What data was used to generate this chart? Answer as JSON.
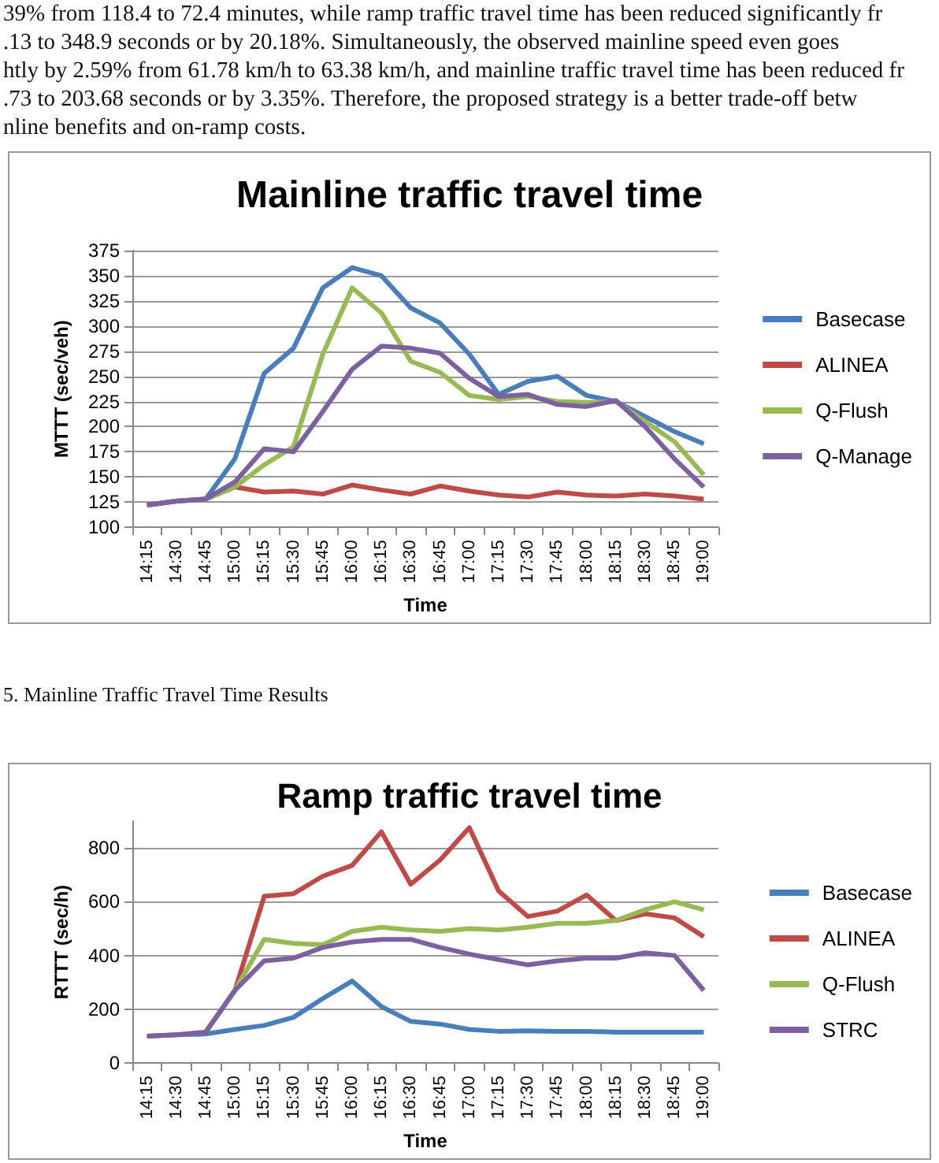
{
  "chart_data": [
    {
      "type": "line",
      "title": "Mainline traffic travel time",
      "xlabel": "Time",
      "ylabel": "MTTT (sec/veh)",
      "categories": [
        "14:15",
        "14:30",
        "14:45",
        "15:00",
        "15:15",
        "15:30",
        "15:45",
        "16:00",
        "16:15",
        "16:30",
        "16:45",
        "17:00",
        "17:15",
        "17:30",
        "17:45",
        "18:00",
        "18:15",
        "18:30",
        "18:45",
        "19:00"
      ],
      "series": [
        {
          "name": "Basecase",
          "color": "#4a7ebb",
          "values": [
            122,
            126,
            128,
            168,
            253,
            278,
            338,
            358,
            350,
            318,
            303,
            272,
            232,
            245,
            250,
            231,
            225,
            210,
            195,
            183
          ]
        },
        {
          "name": "ALINEA",
          "color": "#be4b48",
          "values": [
            122,
            126,
            128,
            140,
            135,
            136,
            133,
            142,
            137,
            133,
            141,
            136,
            132,
            130,
            135,
            132,
            131,
            133,
            131,
            128
          ]
        },
        {
          "name": "Q-Flush",
          "color": "#98b954",
          "values": [
            122,
            126,
            128,
            140,
            162,
            180,
            272,
            338,
            313,
            265,
            254,
            231,
            227,
            230,
            225,
            224,
            225,
            205,
            185,
            152
          ]
        },
        {
          "name": "Q-Manage",
          "color": "#7d60a0",
          "values": [
            122,
            126,
            128,
            145,
            178,
            175,
            215,
            257,
            280,
            278,
            273,
            248,
            230,
            232,
            222,
            220,
            226,
            200,
            168,
            140
          ]
        }
      ],
      "ylim": [
        100,
        375
      ],
      "yticks": [
        100,
        125,
        150,
        175,
        200,
        225,
        250,
        275,
        300,
        325,
        350,
        375
      ],
      "grid": "y",
      "legend": "right",
      "marker": "none",
      "annotations": [
        "39% from 118.4 to 72.4 minutes, while ramp traffic travel time has been reduced significantly fr",
        ".13 to 348.9 seconds or by 20.18%. Simultaneously, the observed mainline speed even goes",
        "htly by 2.59% from 61.78 km/h to 63.38 km/h, and mainline traffic travel time has been reduced fr",
        ".73 to 203.68 seconds or by 3.35%. Therefore, the proposed strategy is a better trade-off betw",
        "nline benefits and on-ramp costs.",
        "5. Mainline Traffic Travel Time Results"
      ]
    },
    {
      "type": "line",
      "title": "Ramp traffic travel time",
      "xlabel": "Time",
      "ylabel": "RTTT (sec/h)",
      "categories": [
        "14:15",
        "14:30",
        "14:45",
        "15:00",
        "15:15",
        "15:30",
        "15:45",
        "16:00",
        "16:15",
        "16:30",
        "16:45",
        "17:00",
        "17:15",
        "17:30",
        "17:45",
        "18:00",
        "18:15",
        "18:30",
        "18:45",
        "19:00"
      ],
      "series": [
        {
          "name": "Basecase",
          "color": "#4a7ebb",
          "values": [
            100,
            105,
            108,
            125,
            140,
            170,
            240,
            305,
            210,
            155,
            145,
            125,
            118,
            120,
            118,
            118,
            115,
            115,
            115,
            115
          ]
        },
        {
          "name": "ALINEA",
          "color": "#be4b48",
          "values": [
            null,
            null,
            115,
            270,
            620,
            630,
            695,
            735,
            860,
            665,
            755,
            875,
            640,
            545,
            565,
            625,
            530,
            555,
            540,
            470
          ]
        },
        {
          "name": "Q-Flush",
          "color": "#98b954",
          "values": [
            null,
            null,
            115,
            270,
            460,
            445,
            440,
            490,
            505,
            495,
            490,
            500,
            495,
            505,
            520,
            520,
            530,
            570,
            600,
            570
          ]
        },
        {
          "name": "STRC",
          "color": "#7d60a0",
          "values": [
            100,
            105,
            115,
            270,
            380,
            390,
            430,
            450,
            460,
            460,
            430,
            405,
            385,
            365,
            380,
            390,
            390,
            410,
            400,
            270
          ]
        }
      ],
      "ylim": [
        0,
        900
      ],
      "yticks": [
        0,
        200,
        400,
        600,
        800
      ],
      "grid": "y",
      "legend": "right",
      "marker": "none"
    }
  ]
}
